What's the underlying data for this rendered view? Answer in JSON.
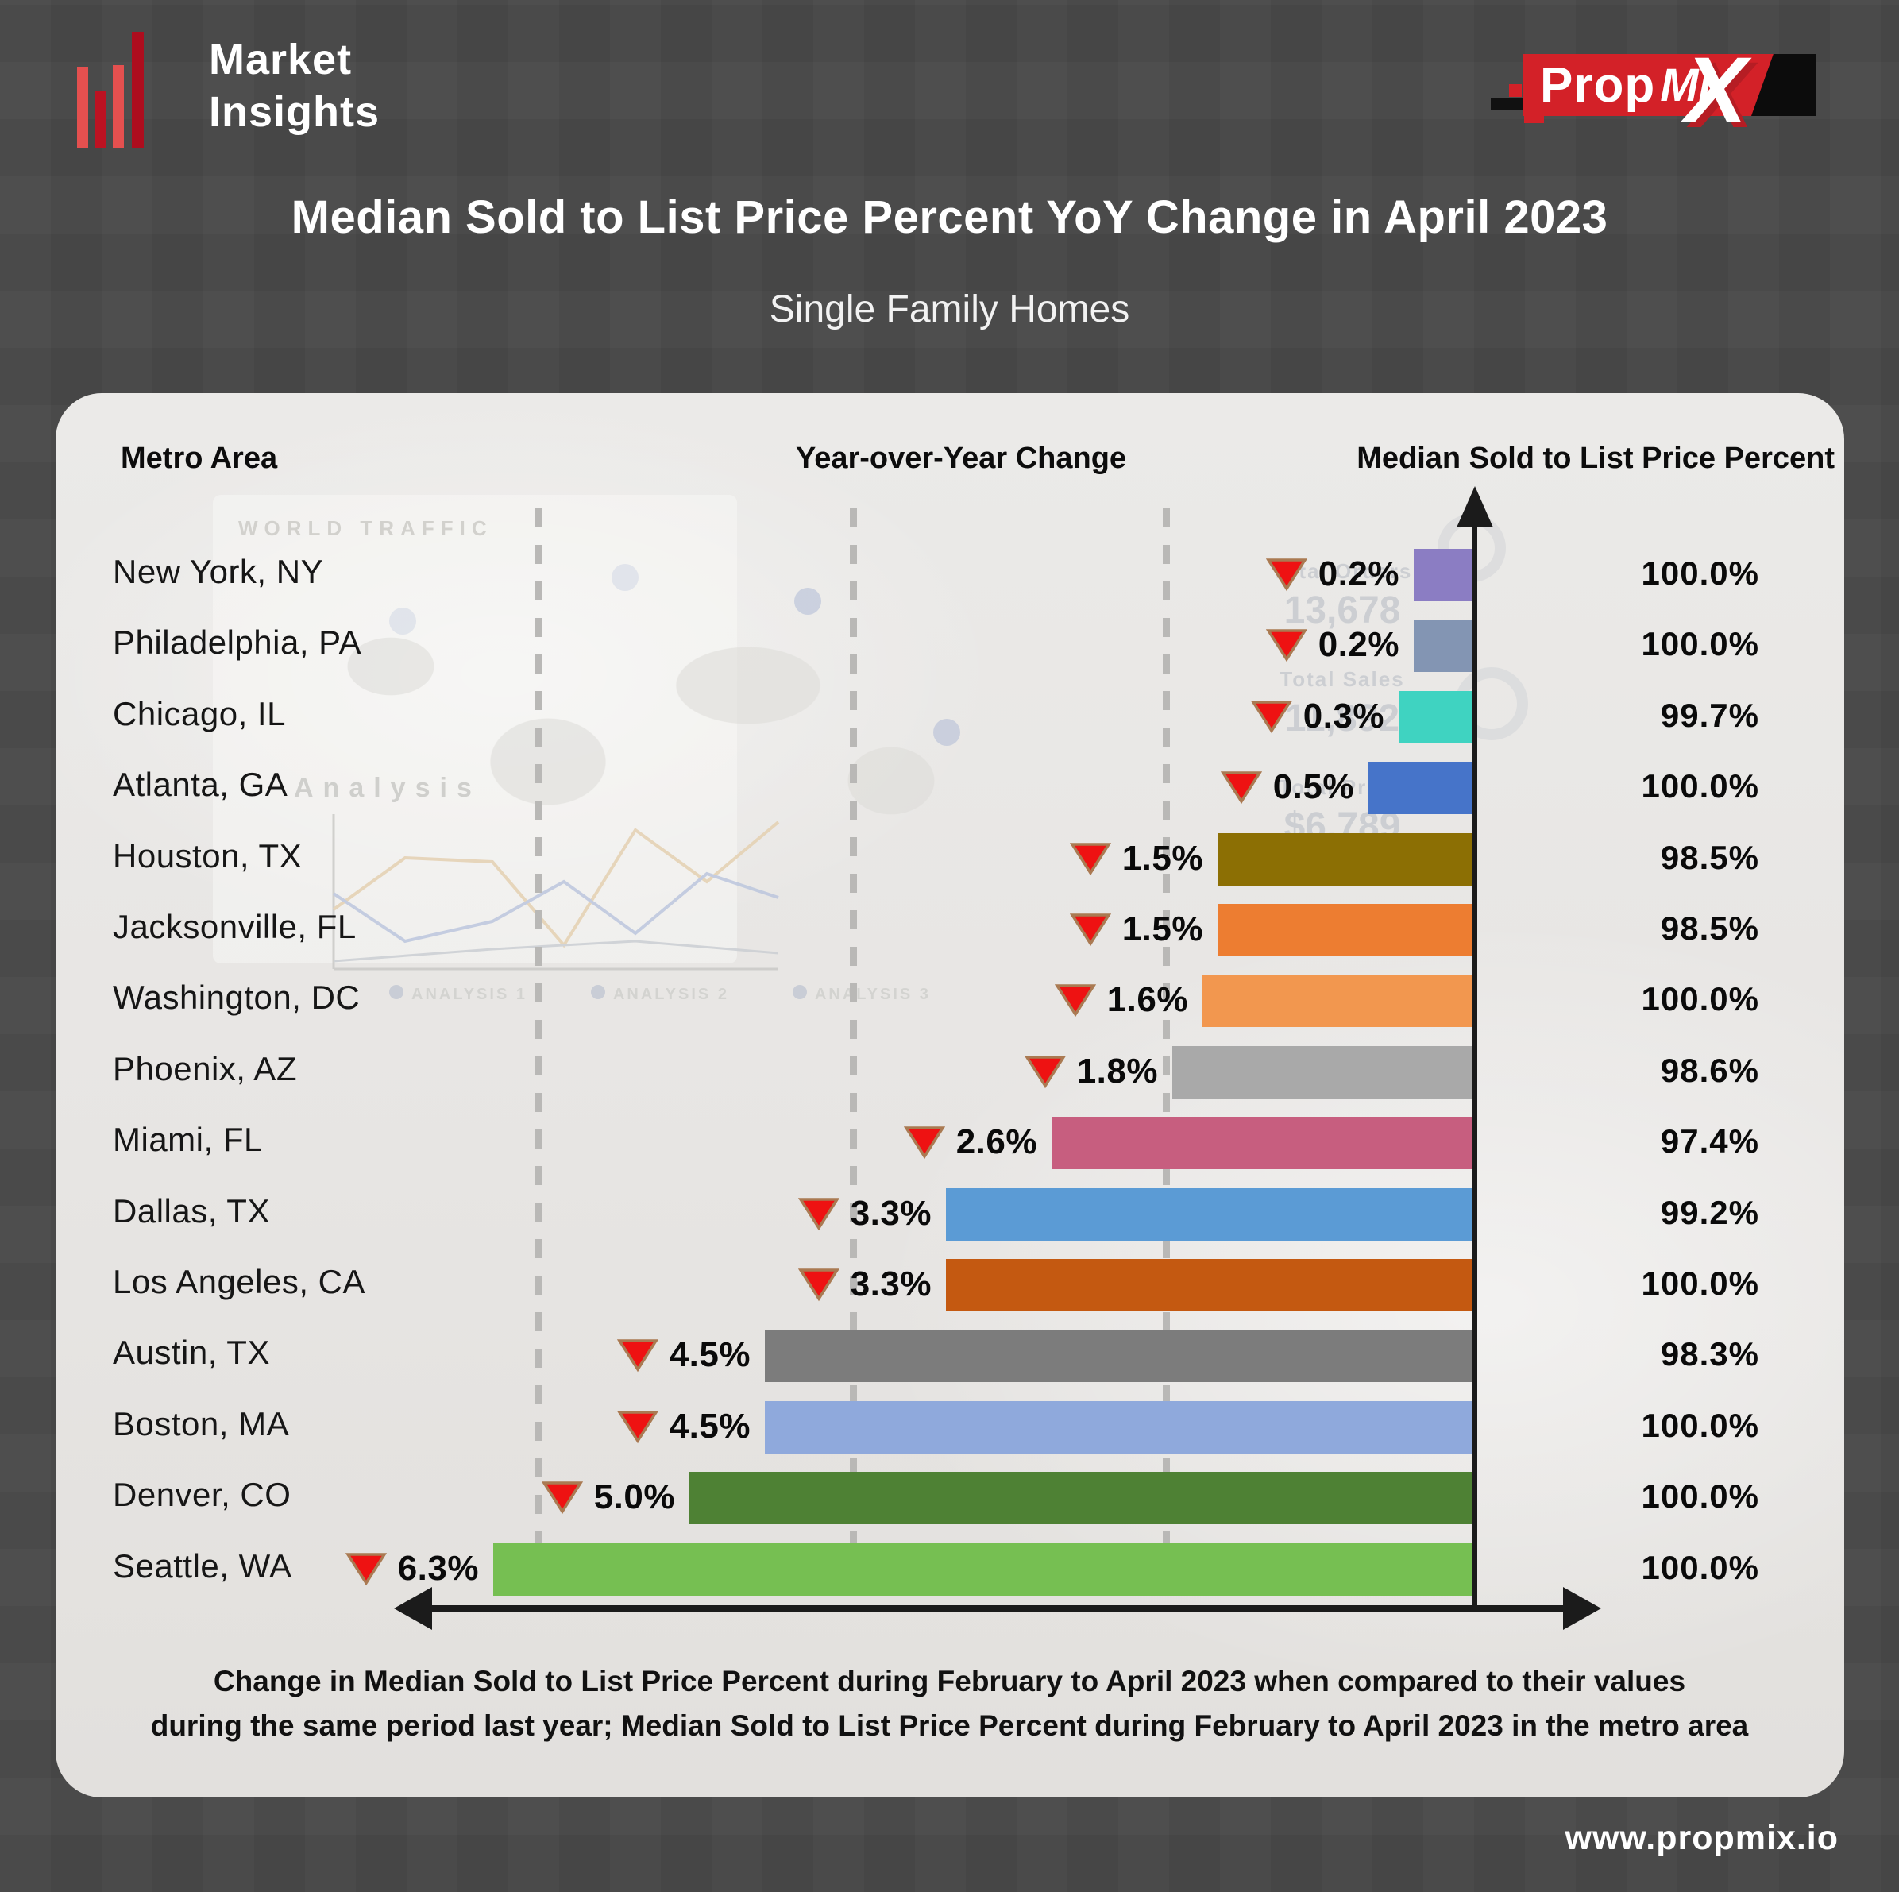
{
  "brand": {
    "name_line1": "Market",
    "name_line2": "Insights"
  },
  "logo": {
    "prop": "Prop",
    "mi": "Mi",
    "x": "X"
  },
  "title": "Median Sold to List Price Percent YoY Change in April 2023",
  "subtitle": "Single Family Homes",
  "columns": {
    "metro": "Metro Area",
    "yoy": "Year-over-Year Change",
    "median": "Median Sold to List Price Percent"
  },
  "chart_data": {
    "type": "bar",
    "orientation": "horizontal",
    "title": "Median Sold to List Price Percent YoY Change in April 2023",
    "subtitle": "Single Family Homes",
    "xlabel": "Year-over-Year Change (all metros declined, shown as red down arrows)",
    "ylabel": "Metro Area",
    "grid": "dashed-vertical",
    "legend_position": "none",
    "categories": [
      "New York, NY",
      "Philadelphia, PA",
      "Chicago, IL",
      "Atlanta, GA",
      "Houston, TX",
      "Jacksonville, FL",
      "Washington, DC",
      "Phoenix, AZ",
      "Miami, FL",
      "Dallas, TX",
      "Los Angeles, CA",
      "Austin, TX",
      "Boston, MA",
      "Denver, CO",
      "Seattle, WA"
    ],
    "series": [
      {
        "name": "Year-over-Year Change (decline, %)",
        "values": [
          0.2,
          0.2,
          0.3,
          0.5,
          1.5,
          1.5,
          1.6,
          1.8,
          2.6,
          3.3,
          3.3,
          4.5,
          4.5,
          5.0,
          6.3
        ]
      },
      {
        "name": "Median Sold to List Price Percent",
        "values": [
          100.0,
          100.0,
          99.7,
          100.0,
          98.5,
          98.5,
          100.0,
          98.6,
          97.4,
          99.2,
          100.0,
          98.3,
          100.0,
          100.0,
          100.0
        ]
      }
    ],
    "rows": [
      {
        "metro": "New York, NY",
        "yoy_label": "0.2%",
        "yoy_value": 0.2,
        "direction": "down",
        "median_label": "100.0%",
        "color": "#8b7dc3"
      },
      {
        "metro": "Philadelphia, PA",
        "yoy_label": "0.2%",
        "yoy_value": 0.2,
        "direction": "down",
        "median_label": "100.0%",
        "color": "#8395b3"
      },
      {
        "metro": "Chicago, IL",
        "yoy_label": "0.3%",
        "yoy_value": 0.3,
        "direction": "down",
        "median_label": "99.7%",
        "color": "#3fd3c1"
      },
      {
        "metro": "Atlanta, GA",
        "yoy_label": "0.5%",
        "yoy_value": 0.5,
        "direction": "down",
        "median_label": "100.0%",
        "color": "#4674c9"
      },
      {
        "metro": "Houston, TX",
        "yoy_label": "1.5%",
        "yoy_value": 1.5,
        "direction": "down",
        "median_label": "98.5%",
        "color": "#8c6f04"
      },
      {
        "metro": "Jacksonville, FL",
        "yoy_label": "1.5%",
        "yoy_value": 1.5,
        "direction": "down",
        "median_label": "98.5%",
        "color": "#ed7d31"
      },
      {
        "metro": "Washington, DC",
        "yoy_label": "1.6%",
        "yoy_value": 1.6,
        "direction": "down",
        "median_label": "100.0%",
        "color": "#f2974f"
      },
      {
        "metro": "Phoenix, AZ",
        "yoy_label": "1.8%",
        "yoy_value": 1.8,
        "direction": "down",
        "median_label": "98.6%",
        "color": "#a9a9a9"
      },
      {
        "metro": "Miami, FL",
        "yoy_label": "2.6%",
        "yoy_value": 2.6,
        "direction": "down",
        "median_label": "97.4%",
        "color": "#c75e7f"
      },
      {
        "metro": "Dallas, TX",
        "yoy_label": "3.3%",
        "yoy_value": 3.3,
        "direction": "down",
        "median_label": "99.2%",
        "color": "#5b9bd5"
      },
      {
        "metro": "Los Angeles, CA",
        "yoy_label": "3.3%",
        "yoy_value": 3.3,
        "direction": "down",
        "median_label": "100.0%",
        "color": "#c45911"
      },
      {
        "metro": "Austin, TX",
        "yoy_label": "4.5%",
        "yoy_value": 4.5,
        "direction": "down",
        "median_label": "98.3%",
        "color": "#7c7c7c"
      },
      {
        "metro": "Boston, MA",
        "yoy_label": "4.5%",
        "yoy_value": 4.5,
        "direction": "down",
        "median_label": "100.0%",
        "color": "#8fa9dc"
      },
      {
        "metro": "Denver, CO",
        "yoy_label": "5.0%",
        "yoy_value": 5.0,
        "direction": "down",
        "median_label": "100.0%",
        "color": "#4e8134"
      },
      {
        "metro": "Seattle, WA",
        "yoy_label": "6.3%",
        "yoy_value": 6.3,
        "direction": "down",
        "median_label": "100.0%",
        "color": "#76bf52"
      }
    ]
  },
  "footer": {
    "note_line1": "Change in Median Sold to List Price Percent during February to April 2023 when compared to their values",
    "note_line2": "during the same period last year; Median Sold to List Price Percent during February to April 2023 in the metro area",
    "website": "www.propmix.io"
  },
  "watermark": {
    "world_traffic": "WORLD TRAFFIC",
    "analysis": "Analysis",
    "total_orders_label": "Total Orders",
    "total_orders_value": "13,678",
    "total_sales_label": "Total Sales",
    "total_sales_value": "11,892",
    "total_profit_label": "Total Profit",
    "total_profit_value": "$6,789",
    "legend1": "ANALYSIS 1",
    "legend2": "ANALYSIS 2",
    "legend3": "ANALYSIS 3"
  }
}
